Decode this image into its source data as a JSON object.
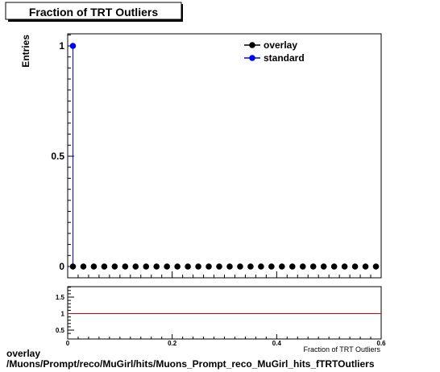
{
  "chart_data": [
    {
      "type": "scatter",
      "title": "Fraction of TRT Outliers",
      "ylabel": "Entries",
      "xlabel": "Fraction of TRT Outliers",
      "xlim": [
        0,
        0.6
      ],
      "ylim": [
        0,
        1.05
      ],
      "x_ticks": [
        "0",
        "0.2",
        "0.4",
        "0.6"
      ],
      "y_ticks": [
        "0",
        "0.5",
        "1"
      ],
      "legend_position": "top-right",
      "series": [
        {
          "name": "overlay",
          "color": "#000000",
          "x": [
            0.01,
            0.03,
            0.05,
            0.07,
            0.09,
            0.11,
            0.13,
            0.15,
            0.17,
            0.19,
            0.21,
            0.23,
            0.25,
            0.27,
            0.29,
            0.31,
            0.33,
            0.35,
            0.37,
            0.39,
            0.41,
            0.43,
            0.45,
            0.47,
            0.49,
            0.51,
            0.53,
            0.55,
            0.57,
            0.59
          ],
          "y": [
            0,
            0,
            0,
            0,
            0,
            0,
            0,
            0,
            0,
            0,
            0,
            0,
            0,
            0,
            0,
            0,
            0,
            0,
            0,
            0,
            0,
            0,
            0,
            0,
            0,
            0,
            0,
            0,
            0,
            0
          ]
        },
        {
          "name": "standard",
          "color": "#0000ff",
          "x": [
            0.01
          ],
          "y": [
            1
          ]
        }
      ]
    },
    {
      "type": "line",
      "ylim": [
        0.3,
        1.75
      ],
      "xlim": [
        0,
        0.6
      ],
      "x_ticks": [
        "0",
        "0.2",
        "0.4",
        "0.6"
      ],
      "y_ticks": [
        "0.5",
        "1",
        "1.5"
      ],
      "reference_line": 1,
      "reference_color": "#cc0000"
    }
  ],
  "footer": {
    "line1": "overlay",
    "line2": "/Muons/Prompt/reco/MuGirl/hits/Muons_Prompt_reco_MuGirl_hits_fTRTOutliers"
  }
}
